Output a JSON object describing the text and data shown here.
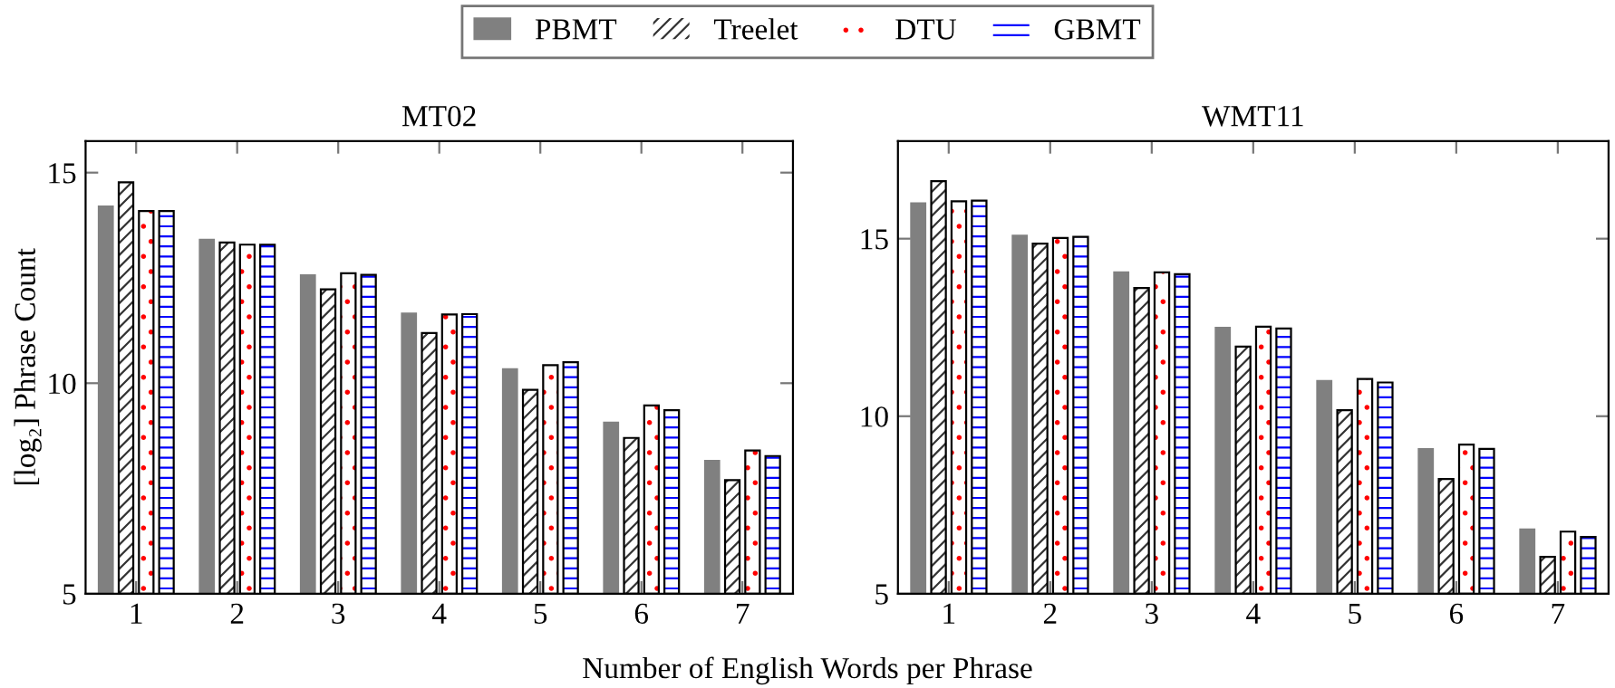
{
  "chart_data": [
    {
      "type": "bar",
      "title": "MT02",
      "ylabel": "[log₂] Phrase Count",
      "xlabel": "Number of English Words per Phrase",
      "categories": [
        "1",
        "2",
        "3",
        "4",
        "5",
        "6",
        "7"
      ],
      "ylim": [
        5,
        15.75
      ],
      "yticks": [
        5,
        10,
        15
      ],
      "legend": "top",
      "grid": false,
      "series": [
        {
          "name": "PBMT",
          "color": "#808080",
          "values": [
            14.2,
            13.41,
            12.57,
            11.66,
            10.34,
            9.07,
            8.16
          ]
        },
        {
          "name": "Treelet",
          "color": "#333333",
          "values": [
            14.77,
            13.34,
            12.23,
            11.19,
            9.84,
            8.7,
            7.7
          ]
        },
        {
          "name": "DTU",
          "color": "#ff0000",
          "values": [
            14.09,
            13.29,
            12.61,
            11.63,
            10.43,
            9.47,
            8.4
          ]
        },
        {
          "name": "GBMT",
          "color": "#0000ff",
          "values": [
            14.09,
            13.29,
            12.57,
            11.64,
            10.5,
            9.36,
            8.27
          ]
        }
      ]
    },
    {
      "type": "bar",
      "title": "WMT11",
      "categories": [
        "1",
        "2",
        "3",
        "4",
        "5",
        "6",
        "7"
      ],
      "ylim": [
        5,
        17.75
      ],
      "yticks": [
        5,
        10,
        15
      ],
      "grid": false,
      "series": [
        {
          "color": "#808080",
          "values": [
            16.0,
            15.09,
            14.06,
            12.5,
            11.0,
            9.08,
            6.82
          ]
        },
        {
          "color": "#333333",
          "values": [
            16.62,
            14.86,
            13.61,
            11.96,
            10.17,
            8.23,
            6.04
          ]
        },
        {
          "color": "#ff0000",
          "values": [
            16.05,
            15.02,
            14.05,
            12.52,
            11.05,
            9.2,
            6.75
          ]
        },
        {
          "color": "#0000ff",
          "values": [
            16.07,
            15.05,
            14.0,
            12.47,
            10.95,
            9.08,
            6.6
          ]
        }
      ]
    }
  ]
}
